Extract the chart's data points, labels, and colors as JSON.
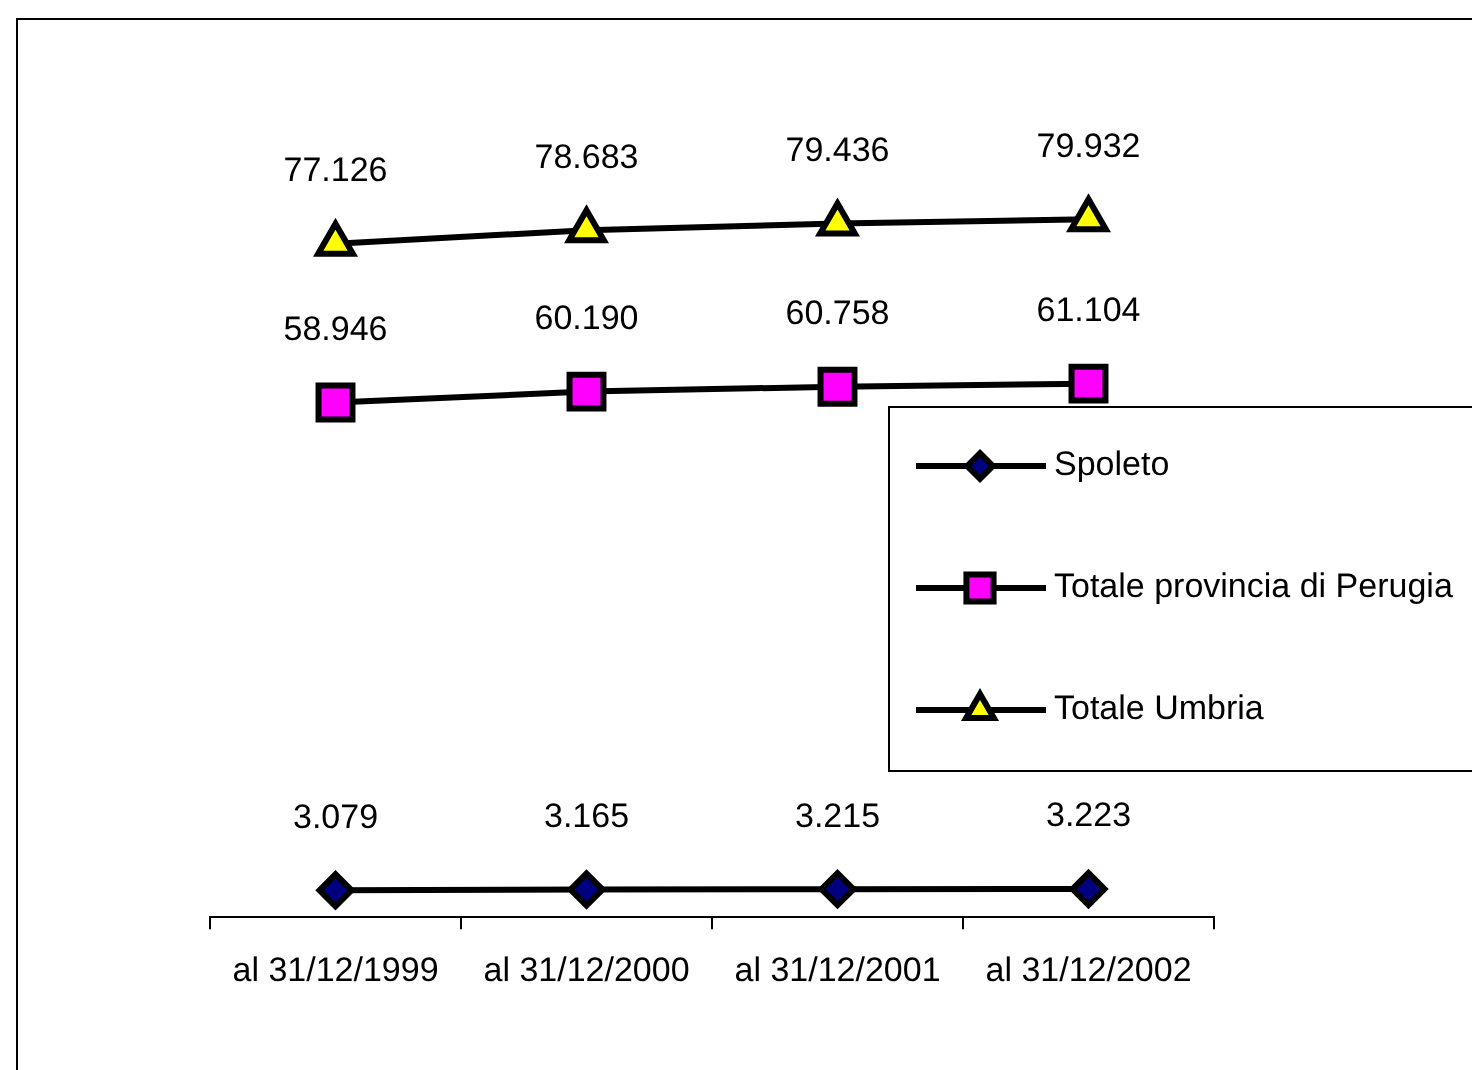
{
  "chart_data": {
    "type": "line",
    "categories": [
      "al 31/12/1999",
      "al 31/12/2000",
      "al 31/12/2001",
      "al 31/12/2002"
    ],
    "series": [
      {
        "name": "Spoleto",
        "color": "#000000",
        "colors": [
          "#000080",
          "#000080",
          "#000080",
          "#000080"
        ],
        "marker": "diamond",
        "values": [
          3079,
          3165,
          3215,
          3223
        ],
        "value_labels": [
          "3.079",
          "3.165",
          "3.215",
          "3.223"
        ]
      },
      {
        "name": "Totale provincia di Perugia",
        "color": "#000000",
        "colors": [
          "#ff00ff",
          "#ff00ff",
          "#ff00ff",
          "#ff00ff"
        ],
        "marker": "square",
        "values": [
          58946,
          60190,
          60758,
          61104
        ],
        "value_labels": [
          "58.946",
          "60.190",
          "60.758",
          "61.104"
        ]
      },
      {
        "name": "Totale Umbria",
        "color": "#000000",
        "colors": [
          "#ffff00",
          "#ffff00",
          "#ffff00",
          "#ffff00"
        ],
        "marker": "triangle",
        "values": [
          77126,
          78683,
          79436,
          79932
        ],
        "value_labels": [
          "77.126",
          "78.683",
          "79.436",
          "79.932"
        ]
      }
    ],
    "legend": "right",
    "tick_labels": "x"
  }
}
